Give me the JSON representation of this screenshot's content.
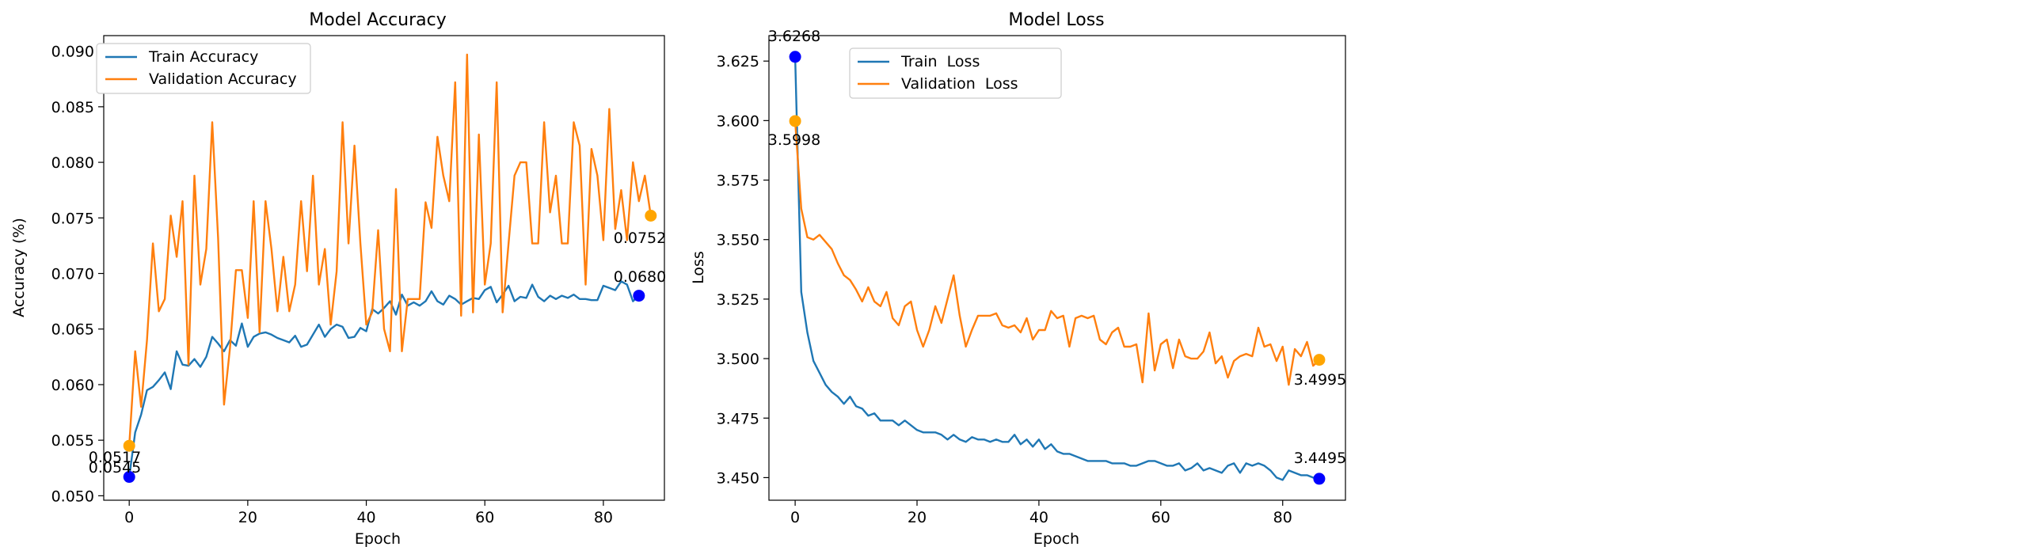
{
  "chart_data": [
    {
      "type": "line",
      "title": "Model Accuracy",
      "xlabel": "Epoch",
      "ylabel": "Accuracy (%)",
      "xlim": [
        -4.3,
        90.3
      ],
      "ylim": [
        0.0496,
        0.0914
      ],
      "xticks": [
        0,
        20,
        40,
        60,
        80
      ],
      "yticks": [
        0.05,
        0.055,
        0.06,
        0.065,
        0.07,
        0.075,
        0.08,
        0.085,
        0.09
      ],
      "ytick_labels": [
        "0.050",
        "0.055",
        "0.060",
        "0.065",
        "0.070",
        "0.075",
        "0.080",
        "0.085",
        "0.090"
      ],
      "grid": false,
      "legend_position": "top-left",
      "series": [
        {
          "name": "Train Accuracy",
          "color": "#1f77b4",
          "values": [
            0.0517,
            0.0557,
            0.0573,
            0.0595,
            0.0598,
            0.0604,
            0.0611,
            0.0596,
            0.063,
            0.0618,
            0.0617,
            0.0623,
            0.0616,
            0.0625,
            0.0643,
            0.0637,
            0.063,
            0.064,
            0.0635,
            0.0655,
            0.0634,
            0.0643,
            0.0646,
            0.0647,
            0.0645,
            0.0642,
            0.064,
            0.0638,
            0.0644,
            0.0634,
            0.0636,
            0.0645,
            0.0654,
            0.0643,
            0.065,
            0.0654,
            0.0652,
            0.0642,
            0.0643,
            0.0651,
            0.0648,
            0.0668,
            0.0664,
            0.0669,
            0.0675,
            0.0663,
            0.0681,
            0.0671,
            0.0674,
            0.0671,
            0.0675,
            0.0684,
            0.0675,
            0.0672,
            0.068,
            0.0677,
            0.0672,
            0.0675,
            0.0678,
            0.0677,
            0.0685,
            0.0688,
            0.0674,
            0.0681,
            0.0689,
            0.0675,
            0.0679,
            0.0678,
            0.069,
            0.0679,
            0.0675,
            0.068,
            0.0677,
            0.068,
            0.0678,
            0.0681,
            0.0677,
            0.0677,
            0.0676,
            0.0676,
            0.0689,
            0.0687,
            0.0685,
            0.0693,
            0.069,
            0.0675,
            0.068
          ]
        },
        {
          "name": "Validation Accuracy",
          "color": "#ff7f0e",
          "values": [
            0.0545,
            0.063,
            0.058,
            0.064,
            0.0727,
            0.0666,
            0.0677,
            0.0752,
            0.0715,
            0.0765,
            0.0618,
            0.0788,
            0.069,
            0.0722,
            0.0836,
            0.0732,
            0.0582,
            0.0633,
            0.0703,
            0.0703,
            0.066,
            0.0765,
            0.0647,
            0.0765,
            0.0722,
            0.0666,
            0.0715,
            0.0666,
            0.069,
            0.0765,
            0.0702,
            0.0788,
            0.069,
            0.0722,
            0.0654,
            0.0702,
            0.0836,
            0.0727,
            0.0815,
            0.0727,
            0.0654,
            0.0665,
            0.0739,
            0.065,
            0.063,
            0.0776,
            0.063,
            0.0677,
            0.0677,
            0.0677,
            0.0764,
            0.0741,
            0.0823,
            0.0788,
            0.0765,
            0.0872,
            0.0662,
            0.0897,
            0.0665,
            0.0825,
            0.069,
            0.0727,
            0.0872,
            0.0665,
            0.0727,
            0.0788,
            0.08,
            0.08,
            0.0727,
            0.0727,
            0.0836,
            0.0755,
            0.0788,
            0.0727,
            0.0727,
            0.0836,
            0.0815,
            0.069,
            0.0812,
            0.0788,
            0.073,
            0.0848,
            0.074,
            0.0775,
            0.073,
            0.08,
            0.0765,
            0.0788,
            0.0752
          ]
        }
      ],
      "annotations": [
        {
          "text": "0.0517",
          "series": 0,
          "x": 0,
          "y": 0.0517
        },
        {
          "text": "0.0545",
          "series": 1,
          "x": 0,
          "y": 0.0545
        },
        {
          "text": "0.0752",
          "series": 1,
          "x": 86,
          "y": 0.0752
        },
        {
          "text": "0.0680",
          "series": 0,
          "x": 86,
          "y": 0.068
        }
      ],
      "marker_colors": {
        "start_train": "#0000ff",
        "end_train": "#0000ff",
        "start_val": "#ffa500",
        "end_val": "#ffa500"
      }
    },
    {
      "type": "line",
      "title": "Model Loss",
      "xlabel": "Epoch",
      "ylabel": "Loss",
      "xlim": [
        -4.3,
        90.3
      ],
      "ylim": [
        3.4405,
        3.6357
      ],
      "xticks": [
        0,
        20,
        40,
        60,
        80
      ],
      "yticks": [
        3.45,
        3.475,
        3.5,
        3.525,
        3.55,
        3.575,
        3.6,
        3.625
      ],
      "ytick_labels": [
        "3.450",
        "3.475",
        "3.500",
        "3.525",
        "3.550",
        "3.575",
        "3.600",
        "3.625"
      ],
      "grid": false,
      "legend_position": "top-left",
      "series": [
        {
          "name": "Train  Loss",
          "color": "#1f77b4",
          "values": [
            3.6268,
            3.528,
            3.511,
            3.499,
            3.494,
            3.489,
            3.486,
            3.484,
            3.481,
            3.484,
            3.48,
            3.479,
            3.476,
            3.477,
            3.474,
            3.474,
            3.474,
            3.472,
            3.474,
            3.472,
            3.47,
            3.469,
            3.469,
            3.469,
            3.468,
            3.466,
            3.468,
            3.466,
            3.465,
            3.467,
            3.466,
            3.466,
            3.465,
            3.466,
            3.465,
            3.465,
            3.468,
            3.464,
            3.466,
            3.463,
            3.466,
            3.462,
            3.464,
            3.461,
            3.46,
            3.46,
            3.459,
            3.458,
            3.457,
            3.457,
            3.457,
            3.457,
            3.456,
            3.456,
            3.456,
            3.455,
            3.455,
            3.456,
            3.457,
            3.457,
            3.456,
            3.455,
            3.455,
            3.456,
            3.453,
            3.454,
            3.456,
            3.453,
            3.454,
            3.453,
            3.452,
            3.455,
            3.456,
            3.452,
            3.456,
            3.455,
            3.456,
            3.455,
            3.453,
            3.45,
            3.449,
            3.453,
            3.452,
            3.451,
            3.451,
            3.45,
            3.4495
          ]
        },
        {
          "name": "Validation  Loss",
          "color": "#ff7f0e",
          "values": [
            3.5998,
            3.563,
            3.551,
            3.55,
            3.552,
            3.549,
            3.546,
            3.54,
            3.535,
            3.533,
            3.529,
            3.524,
            3.53,
            3.524,
            3.522,
            3.528,
            3.517,
            3.514,
            3.522,
            3.524,
            3.512,
            3.505,
            3.512,
            3.522,
            3.515,
            3.525,
            3.535,
            3.518,
            3.505,
            3.512,
            3.518,
            3.518,
            3.518,
            3.519,
            3.514,
            3.513,
            3.514,
            3.511,
            3.517,
            3.508,
            3.512,
            3.512,
            3.52,
            3.517,
            3.518,
            3.505,
            3.517,
            3.518,
            3.517,
            3.518,
            3.508,
            3.506,
            3.511,
            3.513,
            3.505,
            3.505,
            3.506,
            3.49,
            3.519,
            3.495,
            3.506,
            3.508,
            3.496,
            3.508,
            3.501,
            3.5,
            3.5,
            3.503,
            3.511,
            3.498,
            3.501,
            3.492,
            3.499,
            3.501,
            3.502,
            3.501,
            3.513,
            3.505,
            3.506,
            3.499,
            3.505,
            3.489,
            3.504,
            3.501,
            3.507,
            3.497,
            3.4995
          ]
        }
      ],
      "annotations": [
        {
          "text": "3.6268",
          "series": 0,
          "x": 0,
          "y": 3.6268
        },
        {
          "text": "3.5998",
          "series": 1,
          "x": 0,
          "y": 3.5998
        },
        {
          "text": "3.4995",
          "series": 1,
          "x": 86,
          "y": 3.4995
        },
        {
          "text": "3.4495",
          "series": 0,
          "x": 86,
          "y": 3.4495
        }
      ],
      "marker_colors": {
        "start_train": "#0000ff",
        "end_train": "#0000ff",
        "start_val": "#ffa500",
        "end_val": "#ffa500"
      }
    }
  ]
}
